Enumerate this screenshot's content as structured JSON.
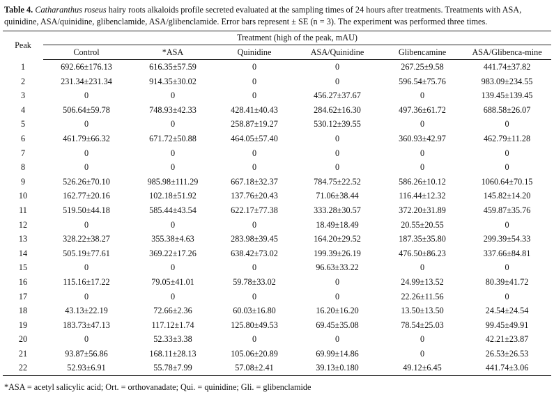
{
  "caption": {
    "label": "Table 4.",
    "species": "Catharanthus roseus",
    "text": " hairy roots alkaloids profile secreted evaluated at the sampling times of 24 hours after treatments. Treatments with ASA, quinidine, ASA/quinidine, glibenclamide, ASA/glibenclamide. Error bars represent ± SE (n = 3). The experiment was performed three times."
  },
  "table": {
    "peak_header": "Peak",
    "group_header": "Treatment (high of the peak, mAU)",
    "columns": [
      "Control",
      "*ASA",
      "Quinidine",
      "ASA/Quinidine",
      "Glibencamine",
      "ASA/Glibenca-mine"
    ],
    "rows": [
      [
        "1",
        "692.66±176.13",
        "616.35±57.59",
        "0",
        "0",
        "267.25±9.58",
        "441.74±37.82"
      ],
      [
        "2",
        "231.34±231.34",
        "914.35±30.02",
        "0",
        "0",
        "596.54±75.76",
        "983.09±234.55"
      ],
      [
        "3",
        "0",
        "0",
        "0",
        "456.27±37.67",
        "0",
        "139.45±139.45"
      ],
      [
        "4",
        "506.64±59.78",
        "748.93±42.33",
        "428.41±40.43",
        "284.62±16.30",
        "497.36±61.72",
        "688.58±26.07"
      ],
      [
        "5",
        "0",
        "0",
        "258.87±19.27",
        "530.12±39.55",
        "0",
        "0"
      ],
      [
        "6",
        "461.79±66.32",
        "671.72±50.88",
        "464.05±57.40",
        "0",
        "360.93±42.97",
        "462.79±11.28"
      ],
      [
        "7",
        "0",
        "0",
        "0",
        "0",
        "0",
        "0"
      ],
      [
        "8",
        "0",
        "0",
        "0",
        "0",
        "0",
        "0"
      ],
      [
        "9",
        "526.26±70.10",
        "985.98±111.29",
        "667.18±32.37",
        "784.75±22.52",
        "586.26±10.12",
        "1060.64±70.15"
      ],
      [
        "10",
        "162.77±20.16",
        "102.18±51.92",
        "137.76±20.43",
        "71.06±38.44",
        "116.44±12.32",
        "145.82±14.20"
      ],
      [
        "11",
        "519.50±44.18",
        "585.44±43.54",
        "622.17±77.38",
        "333.28±30.57",
        "372.20±31.89",
        "459.87±35.76"
      ],
      [
        "12",
        "0",
        "0",
        "0",
        "18.49±18.49",
        "20.55±20.55",
        "0"
      ],
      [
        "13",
        "328.22±38.27",
        "355.38±4.63",
        "283.98±39.45",
        "164.20±29.52",
        "187.35±35.80",
        "299.39±54.33"
      ],
      [
        "14",
        "505.19±77.61",
        "369.22±17.26",
        "638.42±73.02",
        "199.39±26.19",
        "476.50±86.23",
        "337.66±84.81"
      ],
      [
        "15",
        "0",
        "0",
        "0",
        "96.63±33.22",
        "0",
        "0"
      ],
      [
        "16",
        "115.16±17.22",
        "79.05±41.01",
        "59.78±33.02",
        "0",
        "24.99±13.52",
        "80.39±41.72"
      ],
      [
        "17",
        "0",
        "0",
        "0",
        "0",
        "22.26±11.56",
        "0"
      ],
      [
        "18",
        "43.13±22.19",
        "72.66±2.36",
        "60.03±16.80",
        "16.20±16.20",
        "13.50±13.50",
        "24.54±24.54"
      ],
      [
        "19",
        "183.73±47.13",
        "117.12±1.74",
        "125.80±49.53",
        "69.45±35.08",
        "78.54±25.03",
        "99.45±49.91"
      ],
      [
        "20",
        "0",
        "52.33±3.38",
        "0",
        "0",
        "0",
        "42.21±23.87"
      ],
      [
        "21",
        "93.87±56.86",
        "168.11±28.13",
        "105.06±20.89",
        "69.99±14.86",
        "0",
        "26.53±26.53"
      ],
      [
        "22",
        "52.93±6.91",
        "55.78±7.99",
        "57.08±2.41",
        "39.13±0.180",
        "49.12±6.45",
        "441.74±3.06"
      ]
    ]
  },
  "footnote": "*ASA = acetyl salicylic acid; Ort. = orthovanadate; Qui. = quinidine; Gli. = glibenclamide"
}
